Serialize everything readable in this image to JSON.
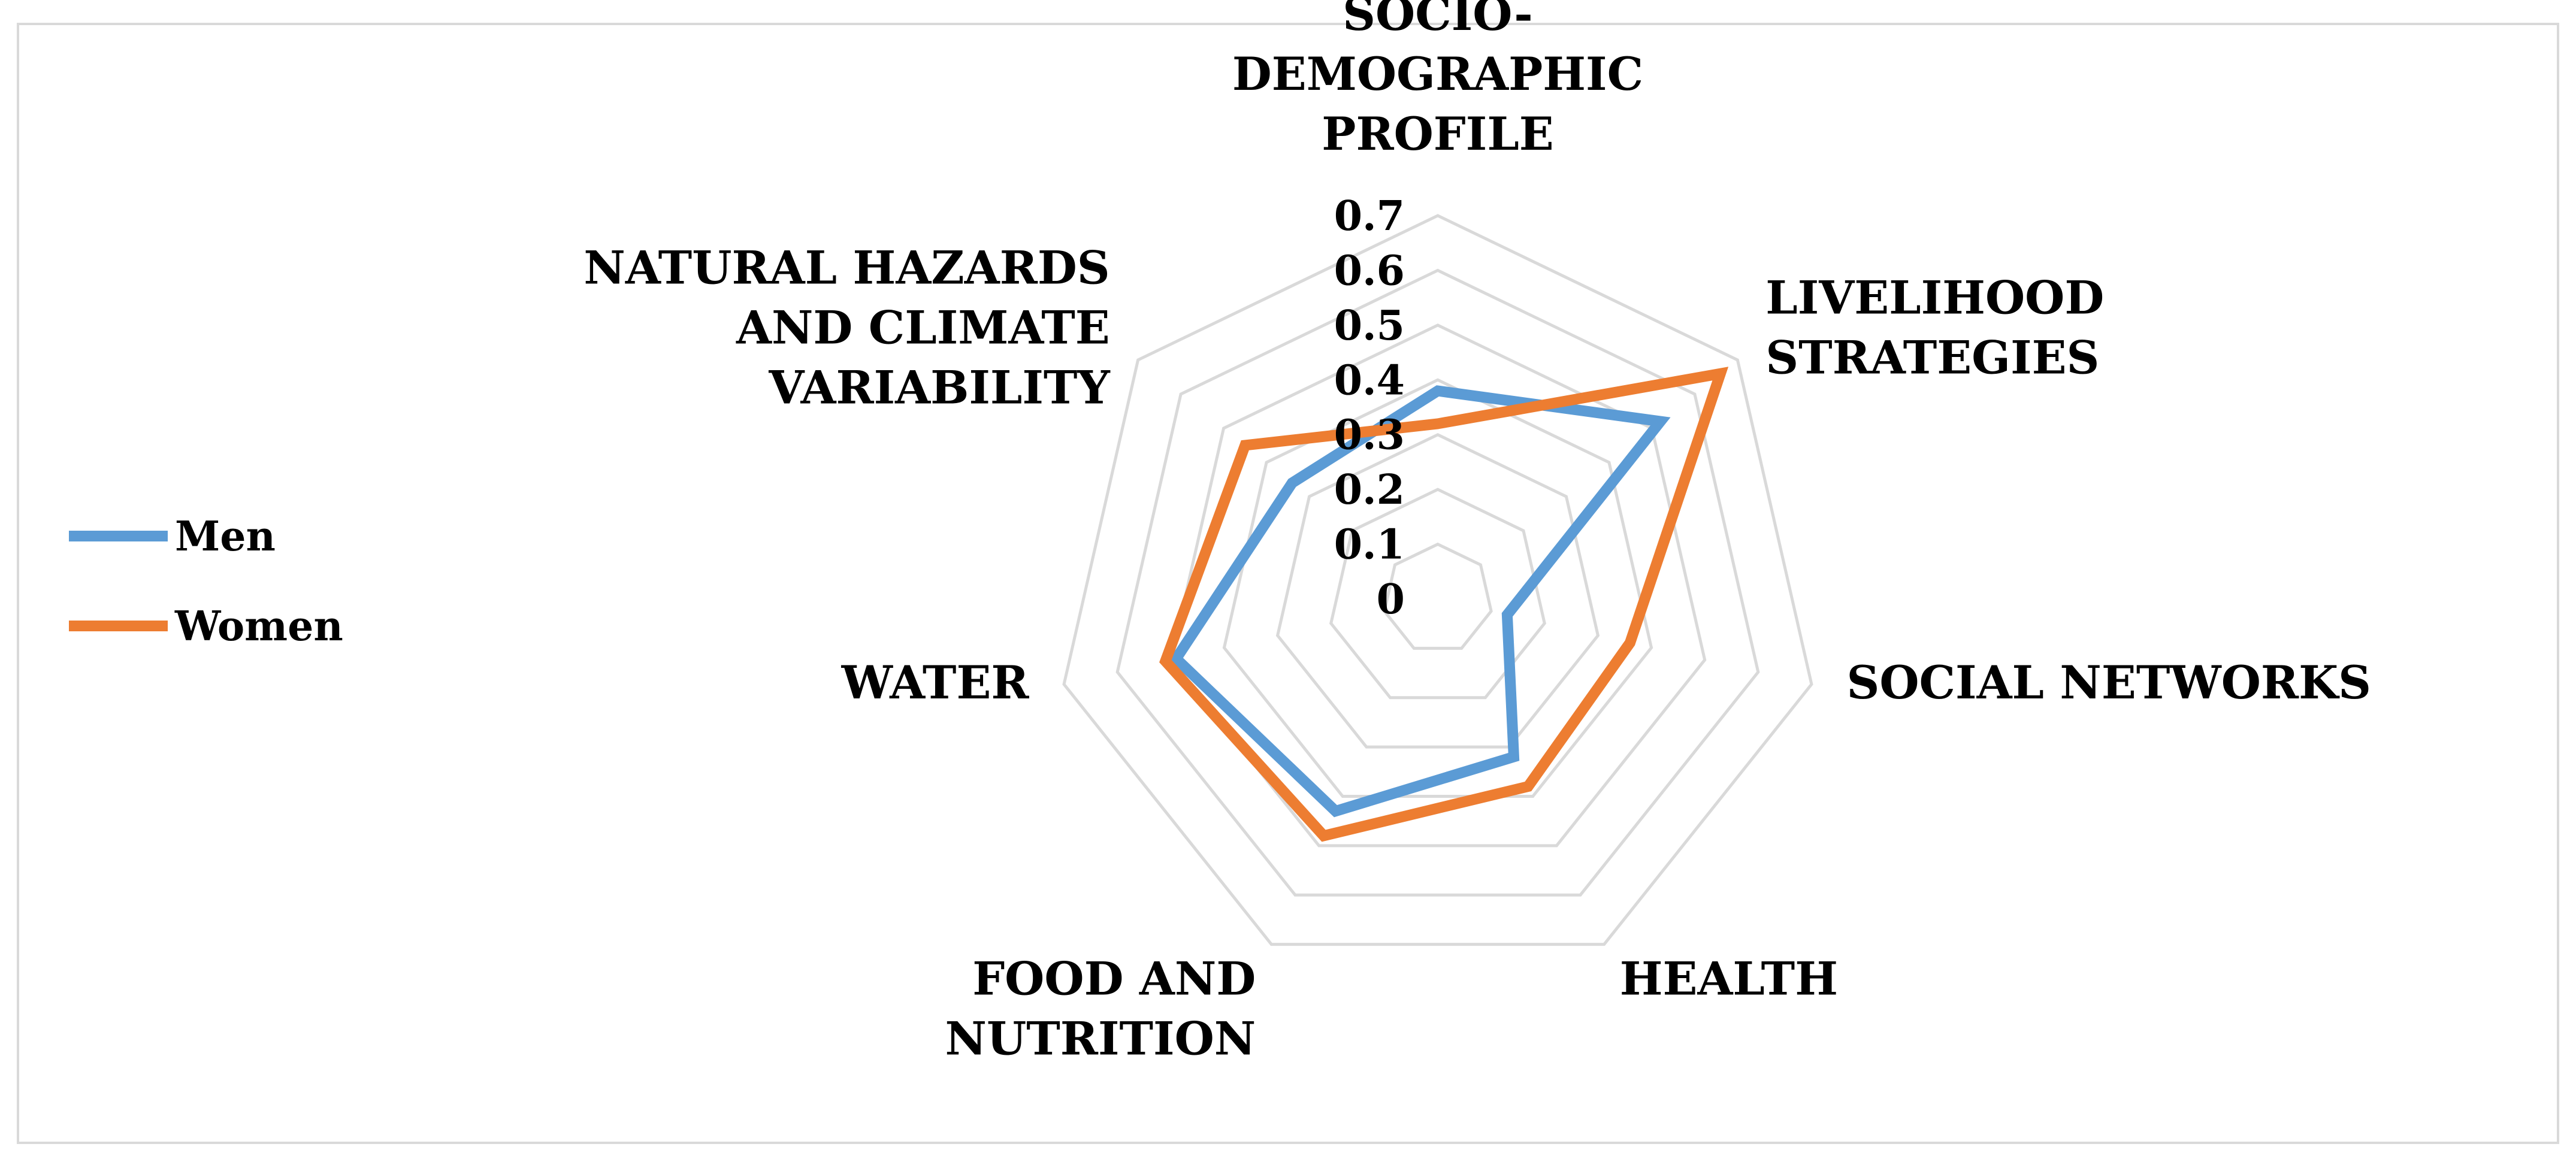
{
  "chart_data": {
    "type": "radar",
    "title": "",
    "axes": [
      [
        "SOCIO-",
        "DEMOGRAPHIC",
        "PROFILE"
      ],
      [
        "LIVELIHOOD",
        "STRATEGIES"
      ],
      [
        "SOCIAL NETWORKS"
      ],
      [
        "HEALTH"
      ],
      [
        "FOOD AND",
        "NUTRITION"
      ],
      [
        "WATER"
      ],
      [
        "NATURAL HAZARDS",
        "AND CLIMATE",
        "VARIABILITY"
      ]
    ],
    "rlim": [
      0,
      0.7
    ],
    "ticks": [
      "0",
      "0.1",
      "0.2",
      "0.3",
      "0.4",
      "0.5",
      "0.6",
      "0.7"
    ],
    "grid": true,
    "legend_position": "left",
    "series": [
      {
        "name": "Men",
        "color": "#5b9bd5",
        "values": [
          0.38,
          0.52,
          0.13,
          0.32,
          0.43,
          0.49,
          0.34
        ]
      },
      {
        "name": "Women",
        "color": "#ed7d31",
        "values": [
          0.32,
          0.66,
          0.36,
          0.38,
          0.48,
          0.51,
          0.45
        ]
      }
    ]
  }
}
